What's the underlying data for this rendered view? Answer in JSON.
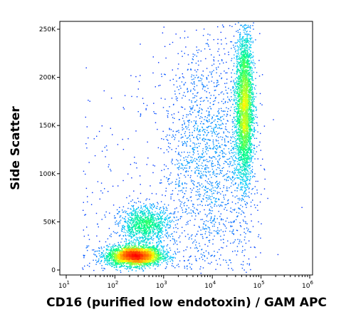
{
  "chart_data": {
    "type": "scatter",
    "title": "",
    "xlabel": "CD16 (purified low endotoxin) / GAM APC",
    "ylabel": "Side Scatter",
    "x_scale": "log",
    "xlim": [
      10,
      1000000
    ],
    "x_ticks": [
      {
        "value": 10,
        "base": "10",
        "exp": "1"
      },
      {
        "value": 100,
        "base": "10",
        "exp": "2"
      },
      {
        "value": 1000,
        "base": "10",
        "exp": "3"
      },
      {
        "value": 10000,
        "base": "10",
        "exp": "4"
      },
      {
        "value": 100000,
        "base": "10",
        "exp": "5"
      },
      {
        "value": 1000000,
        "base": "10",
        "exp": "6"
      }
    ],
    "y_scale": "linear",
    "ylim": [
      0,
      262144
    ],
    "y_ticks": [
      {
        "value": 0,
        "label": "0"
      },
      {
        "value": 50000,
        "label": "50K"
      },
      {
        "value": 100000,
        "label": "100K"
      },
      {
        "value": 150000,
        "label": "150K"
      },
      {
        "value": 200000,
        "label": "200K"
      },
      {
        "value": 250000,
        "label": "250K"
      }
    ],
    "grid": false,
    "density_colormap": [
      "#0000ff",
      "#00c8ff",
      "#00ff80",
      "#ffff00",
      "#ff8000",
      "#ff0000"
    ],
    "populations": [
      {
        "center_x": 250,
        "center_y": 15000,
        "spread_log_x": 0.28,
        "spread_y": 5000,
        "density": "high"
      },
      {
        "center_x": 400,
        "center_y": 47000,
        "spread_log_x": 0.25,
        "spread_y": 10000,
        "density": "medium"
      },
      {
        "center_x": 45000,
        "center_y": 170000,
        "spread_log_x": 0.09,
        "spread_y": 40000,
        "density": "high"
      },
      {
        "center_x": 8000,
        "center_y": 120000,
        "spread_log_x": 0.45,
        "spread_y": 60000,
        "density": "low"
      }
    ]
  }
}
